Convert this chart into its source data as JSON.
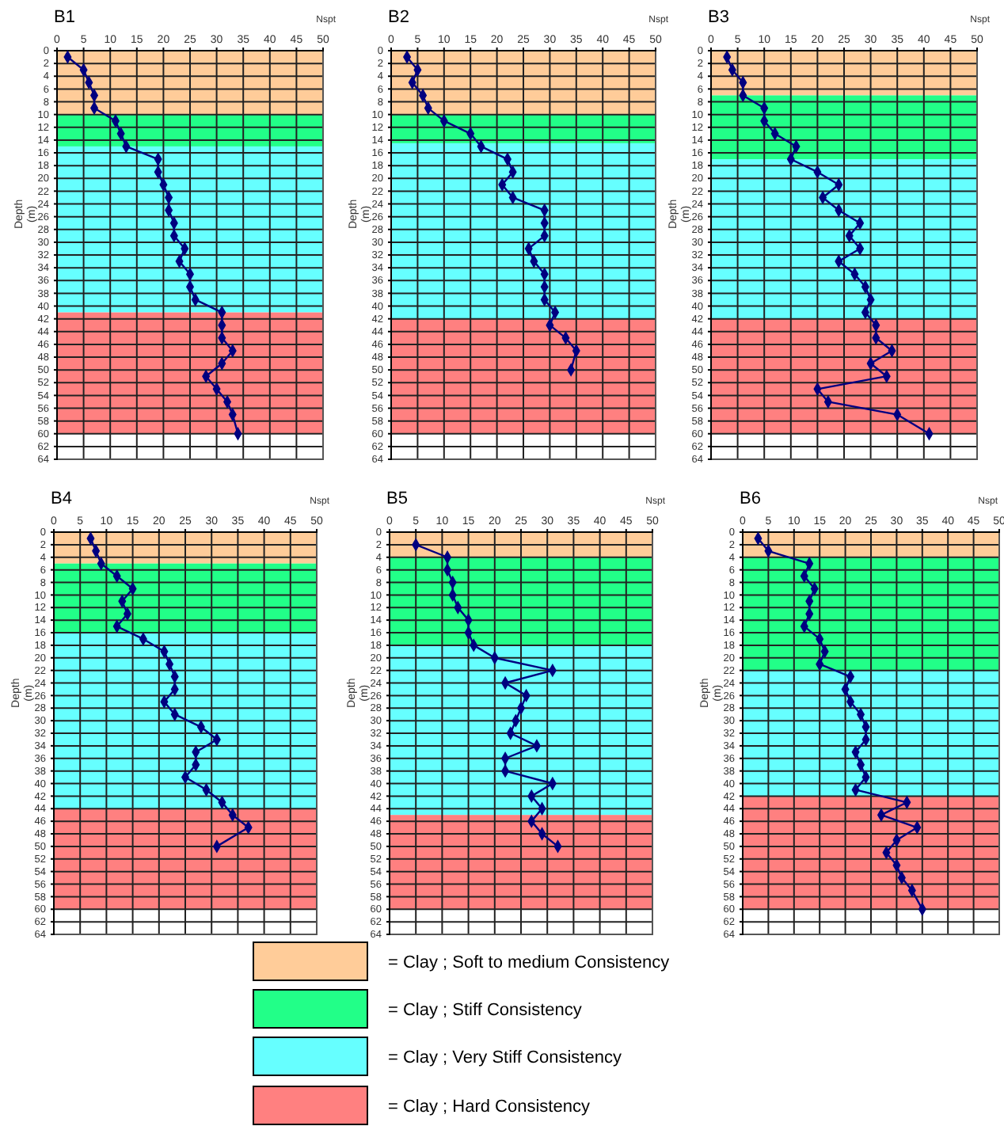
{
  "chart_data": [
    {
      "type": "line",
      "title": "B1",
      "xlabel": "Nspt",
      "ylabel": "Depth (m)",
      "xlim": [
        0,
        50
      ],
      "xticks": [
        0,
        5,
        10,
        15,
        20,
        25,
        30,
        35,
        40,
        45,
        50
      ],
      "ylim": [
        64,
        0
      ],
      "yticks": [
        0,
        2,
        4,
        6,
        8,
        10,
        12,
        14,
        16,
        18,
        20,
        22,
        24,
        26,
        28,
        30,
        32,
        34,
        36,
        38,
        40,
        42,
        44,
        46,
        48,
        50,
        52,
        54,
        56,
        58,
        60,
        62,
        64
      ],
      "grid": true,
      "marker": "diamond",
      "bands": [
        {
          "axis": "y",
          "from": 0,
          "to": 10,
          "color": "#ffcc99"
        },
        {
          "axis": "y",
          "from": 10,
          "to": 15,
          "color": "#22ff88"
        },
        {
          "axis": "y",
          "from": 15,
          "to": 41,
          "color": "#66ffff"
        },
        {
          "axis": "y",
          "from": 41,
          "to": 60,
          "color": "#ff8080"
        }
      ],
      "series": [
        {
          "color": "#000080",
          "x": [
            2,
            5,
            6,
            7,
            7,
            11,
            12,
            13,
            19,
            19,
            20,
            21,
            21,
            22,
            22,
            24,
            23,
            25,
            25,
            26,
            31,
            31,
            31,
            33,
            31,
            28,
            30,
            32,
            33,
            34
          ],
          "values": [
            1,
            3,
            5,
            7,
            9,
            11,
            13,
            15,
            17,
            19,
            21,
            23,
            25,
            27,
            29,
            31,
            33,
            35,
            37,
            39,
            41,
            43,
            45,
            47,
            49,
            51,
            53,
            55,
            57,
            60
          ]
        }
      ]
    },
    {
      "type": "line",
      "title": "B2",
      "xlabel": "Nspt",
      "ylabel": "Depth (m)",
      "xlim": [
        0,
        50
      ],
      "xticks": [
        0,
        5,
        10,
        15,
        20,
        25,
        30,
        35,
        40,
        45,
        50
      ],
      "ylim": [
        64,
        0
      ],
      "yticks": [
        0,
        2,
        4,
        6,
        8,
        10,
        12,
        14,
        16,
        18,
        20,
        22,
        24,
        26,
        28,
        30,
        32,
        34,
        36,
        38,
        40,
        42,
        44,
        46,
        48,
        50,
        52,
        54,
        56,
        58,
        60,
        62,
        64
      ],
      "grid": true,
      "marker": "diamond",
      "bands": [
        {
          "axis": "y",
          "from": 0,
          "to": 10,
          "color": "#ffcc99"
        },
        {
          "axis": "y",
          "from": 10,
          "to": 14.5,
          "color": "#22ff88"
        },
        {
          "axis": "y",
          "from": 14.5,
          "to": 42,
          "color": "#66ffff"
        },
        {
          "axis": "y",
          "from": 42,
          "to": 60,
          "color": "#ff8080"
        }
      ],
      "series": [
        {
          "color": "#000080",
          "x": [
            3,
            5,
            4,
            6,
            7,
            10,
            15,
            17,
            22,
            23,
            21,
            23,
            29,
            29,
            29,
            26,
            27,
            29,
            29,
            29,
            31,
            30,
            33,
            35,
            34
          ],
          "values": [
            1,
            3,
            5,
            7,
            9,
            11,
            13,
            15,
            17,
            19,
            21,
            23,
            25,
            27,
            29,
            31,
            33,
            35,
            37,
            39,
            41,
            43,
            45,
            47,
            50
          ]
        }
      ]
    },
    {
      "type": "line",
      "title": "B3",
      "xlabel": "Nspt",
      "ylabel": "Depth (m)",
      "xlim": [
        0,
        50
      ],
      "xticks": [
        0,
        5,
        10,
        15,
        20,
        25,
        30,
        35,
        40,
        45,
        50
      ],
      "ylim": [
        64,
        0
      ],
      "yticks": [
        0,
        2,
        4,
        6,
        8,
        10,
        12,
        14,
        16,
        18,
        20,
        22,
        24,
        26,
        28,
        30,
        32,
        34,
        36,
        38,
        40,
        42,
        44,
        46,
        48,
        50,
        52,
        54,
        56,
        58,
        60,
        62,
        64
      ],
      "grid": true,
      "marker": "diamond",
      "bands": [
        {
          "axis": "y",
          "from": 0,
          "to": 7,
          "color": "#ffcc99"
        },
        {
          "axis": "y",
          "from": 7,
          "to": 17,
          "color": "#22ff88"
        },
        {
          "axis": "y",
          "from": 17,
          "to": 42,
          "color": "#66ffff"
        },
        {
          "axis": "y",
          "from": 42,
          "to": 60,
          "color": "#ff8080"
        }
      ],
      "series": [
        {
          "color": "#000080",
          "x": [
            3,
            4,
            6,
            6,
            10,
            10,
            12,
            16,
            15,
            20,
            24,
            21,
            24,
            28,
            26,
            28,
            24,
            27,
            29,
            30,
            29,
            31,
            31,
            34,
            30,
            33,
            20,
            22,
            35,
            41
          ],
          "values": [
            1,
            3,
            5,
            7,
            9,
            11,
            13,
            15,
            17,
            19,
            21,
            23,
            25,
            27,
            29,
            31,
            33,
            35,
            37,
            39,
            41,
            43,
            45,
            47,
            49,
            51,
            53,
            55,
            57,
            60
          ]
        }
      ]
    },
    {
      "type": "line",
      "title": "B4",
      "xlabel": "Nspt",
      "ylabel": "Depth (m)",
      "xlim": [
        0,
        50
      ],
      "xticks": [
        0,
        5,
        10,
        15,
        20,
        25,
        30,
        35,
        40,
        45,
        50
      ],
      "ylim": [
        64,
        0
      ],
      "yticks": [
        0,
        2,
        4,
        6,
        8,
        10,
        12,
        14,
        16,
        18,
        20,
        22,
        24,
        26,
        28,
        30,
        32,
        34,
        36,
        38,
        40,
        42,
        44,
        46,
        48,
        50,
        52,
        54,
        56,
        58,
        60,
        62,
        64
      ],
      "grid": true,
      "marker": "diamond",
      "bands": [
        {
          "axis": "y",
          "from": 0,
          "to": 5,
          "color": "#ffcc99"
        },
        {
          "axis": "y",
          "from": 5,
          "to": 16,
          "color": "#22ff88"
        },
        {
          "axis": "y",
          "from": 16,
          "to": 44,
          "color": "#66ffff"
        },
        {
          "axis": "y",
          "from": 44,
          "to": 60,
          "color": "#ff8080"
        }
      ],
      "series": [
        {
          "color": "#000080",
          "x": [
            7,
            8,
            9,
            12,
            15,
            13,
            14,
            12,
            17,
            21,
            22,
            23,
            23,
            21,
            23,
            28,
            31,
            27,
            27,
            25,
            29,
            32,
            34,
            37,
            31
          ],
          "values": [
            1,
            3,
            5,
            7,
            9,
            11,
            13,
            15,
            17,
            19,
            21,
            23,
            25,
            27,
            29,
            31,
            33,
            35,
            37,
            39,
            41,
            43,
            45,
            47,
            50
          ]
        }
      ]
    },
    {
      "type": "line",
      "title": "B5",
      "xlabel": "Nspt",
      "ylabel": "Depth (m)",
      "xlim": [
        0,
        50
      ],
      "xticks": [
        0,
        5,
        10,
        15,
        20,
        25,
        30,
        35,
        40,
        45,
        50
      ],
      "ylim": [
        64,
        0
      ],
      "yticks": [
        0,
        2,
        4,
        6,
        8,
        10,
        12,
        14,
        16,
        18,
        20,
        22,
        24,
        26,
        28,
        30,
        32,
        34,
        36,
        38,
        40,
        42,
        44,
        46,
        48,
        50,
        52,
        54,
        56,
        58,
        60,
        62,
        64
      ],
      "grid": true,
      "marker": "diamond",
      "bands": [
        {
          "axis": "y",
          "from": 0,
          "to": 4,
          "color": "#ffcc99"
        },
        {
          "axis": "y",
          "from": 4,
          "to": 18,
          "color": "#22ff88"
        },
        {
          "axis": "y",
          "from": 18,
          "to": 45,
          "color": "#66ffff"
        },
        {
          "axis": "y",
          "from": 45,
          "to": 60,
          "color": "#ff8080"
        }
      ],
      "series": [
        {
          "color": "#000080",
          "x": [
            5,
            11,
            11,
            12,
            12,
            13,
            15,
            15,
            16,
            20,
            31,
            22,
            26,
            25,
            24,
            23,
            28,
            22,
            22,
            31,
            27,
            29,
            27,
            29,
            32
          ],
          "values": [
            2,
            4,
            6,
            8,
            10,
            12,
            14,
            16,
            18,
            20,
            22,
            24,
            26,
            28,
            30,
            32,
            34,
            36,
            38,
            40,
            42,
            44,
            46,
            48,
            50
          ]
        }
      ]
    },
    {
      "type": "line",
      "title": "B6",
      "xlabel": "Nspt",
      "ylabel": "Depth (m)",
      "xlim": [
        0,
        50
      ],
      "xticks": [
        0,
        5,
        10,
        15,
        20,
        25,
        30,
        35,
        40,
        45,
        50
      ],
      "ylim": [
        64,
        0
      ],
      "yticks": [
        0,
        2,
        4,
        6,
        8,
        10,
        12,
        14,
        16,
        18,
        20,
        22,
        24,
        26,
        28,
        30,
        32,
        34,
        36,
        38,
        40,
        42,
        44,
        46,
        48,
        50,
        52,
        54,
        56,
        58,
        60,
        62,
        64
      ],
      "grid": true,
      "marker": "diamond",
      "bands": [
        {
          "axis": "y",
          "from": 0,
          "to": 4,
          "color": "#ffcc99"
        },
        {
          "axis": "y",
          "from": 4,
          "to": 22,
          "color": "#22ff88"
        },
        {
          "axis": "y",
          "from": 22,
          "to": 42,
          "color": "#66ffff"
        },
        {
          "axis": "y",
          "from": 42,
          "to": 60,
          "color": "#ff8080"
        }
      ],
      "series": [
        {
          "color": "#000080",
          "x": [
            3,
            5,
            13,
            12,
            14,
            13,
            13,
            12,
            15,
            16,
            15,
            21,
            20,
            21,
            23,
            24,
            24,
            22,
            23,
            24,
            22,
            32,
            27,
            34,
            30,
            28,
            30,
            31,
            33,
            35
          ],
          "values": [
            1,
            3,
            5,
            7,
            9,
            11,
            13,
            15,
            17,
            19,
            21,
            23,
            25,
            27,
            29,
            31,
            33,
            35,
            37,
            39,
            41,
            43,
            45,
            47,
            49,
            51,
            53,
            55,
            57,
            60
          ]
        }
      ]
    },
    {
      "type": "other",
      "categories": [
        "= Clay ; Soft to medium Consistency",
        "= Clay ; Stiff Consistency",
        "= Clay ; Very Stiff Consistency",
        "= Clay ; Hard Consistency"
      ],
      "colors": [
        "#ffcc99",
        "#22ff88",
        "#66ffff",
        "#ff8080"
      ]
    }
  ]
}
